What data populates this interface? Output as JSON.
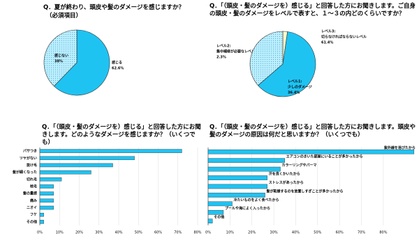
{
  "chart_data": [
    {
      "type": "pie",
      "title": "Q．夏が終わり、頭皮や髪のダメージを感じますか？",
      "subtitle": "（必須項目）",
      "categories": [
        "感じる",
        "感じない"
      ],
      "values": [
        62.6,
        38
      ],
      "value_labels": [
        "62.6%",
        "38%"
      ],
      "colors": [
        "#1fc3f2",
        "#bfeefc"
      ]
    },
    {
      "type": "pie",
      "title": "Q．「（頭皮・髪のダメージを）感じる」と回答した方にお聞きします。ご自身の頭皮・髪のダメージをレベルで表すと、１～３の内どのくらいですか？",
      "categories": [
        "レベル2:",
        "レベル3:",
        "レベル1:"
      ],
      "descriptions": [
        "集中補修が必要なレベル",
        "切らなければならないレベル",
        "少しのダメージ"
      ],
      "values": [
        2.3,
        61.4,
        36.4
      ],
      "value_labels": [
        "2.3%",
        "61.4%",
        "36.4%"
      ],
      "colors": [
        "#fdf8c8",
        "#1fc3f2",
        "#bfeefc"
      ]
    },
    {
      "type": "hbar",
      "title": "Q．「（頭皮・髪のダメージを）感じる」と回答した方にお聞きします。どのようなダメージを感じますか？（いくつでも）",
      "categories": [
        "パサつき",
        "ツヤがない",
        "抜け毛",
        "髪が細くなった",
        "切れ毛",
        "枝毛",
        "髪の量感",
        "痛み",
        "ニオイ",
        "フケ",
        "その他"
      ],
      "values": [
        72,
        48,
        37,
        26,
        11,
        7,
        7,
        7,
        7,
        2,
        2
      ],
      "color": "#1fc3f2",
      "xlim": [
        0,
        80
      ],
      "xticks": [
        {
          "value": 0,
          "label": "0%"
        },
        {
          "value": 10,
          "label": "10%"
        },
        {
          "value": 20,
          "label": "20%"
        },
        {
          "value": 30,
          "label": "30%"
        },
        {
          "value": 40,
          "label": "40%"
        },
        {
          "value": 50,
          "label": "50%"
        },
        {
          "value": 60,
          "label": "60%"
        },
        {
          "value": 70,
          "label": "70%"
        },
        {
          "value": 80,
          "label": "80%"
        }
      ],
      "label_position": "left"
    },
    {
      "type": "hbar",
      "title": "Q．「（頭皮・髪のダメージを）感じる」と回答した方にお聞きします。頭皮や髪のダメージの原因は何だと思いますか？（いくつでも）",
      "categories": [
        "紫外線を浴びたから",
        "エアコンのきいた部屋にいることが多かったから",
        "カラーリングやパーマ",
        "汗を良くかいたから",
        "ストレスがあったから",
        "髪が乾燥するのを放置しすぎことが多かったから",
        "冷たいものをよく食べたから",
        "プールや海によく入ったから",
        "その他"
      ],
      "values": [
        94,
        35,
        33,
        27,
        27,
        26,
        11,
        7,
        2
      ],
      "color": "#1fc3f2",
      "xlim": [
        0,
        95
      ],
      "xticks": [
        {
          "value": 0,
          "label": "0%"
        },
        {
          "value": 10,
          "label": "10%"
        },
        {
          "value": 20,
          "label": "20%"
        },
        {
          "value": 30,
          "label": "30%"
        },
        {
          "value": 40,
          "label": "40%"
        },
        {
          "value": 50,
          "label": "50%"
        },
        {
          "value": 60,
          "label": "60%"
        },
        {
          "value": 70,
          "label": "70%"
        },
        {
          "value": 80,
          "label": "80%"
        }
      ],
      "label_position": "end"
    }
  ]
}
